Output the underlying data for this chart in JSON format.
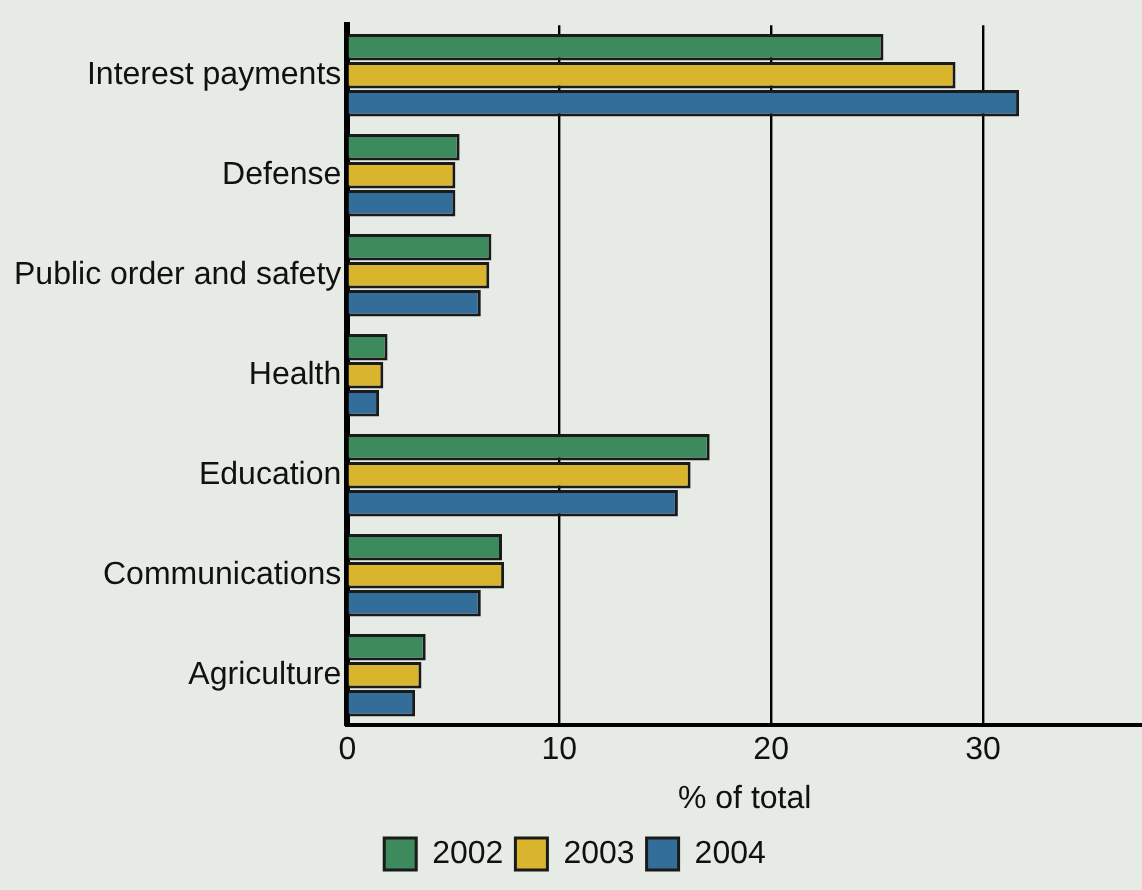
{
  "chart_data": {
    "type": "bar",
    "orientation": "horizontal",
    "xlabel": "% of total",
    "categories": [
      "Interest payments",
      "Defense",
      "Public order and safety",
      "Health",
      "Education",
      "Communications",
      "Agriculture"
    ],
    "series": [
      {
        "name": "2002",
        "color": "#3d8a5c",
        "values": [
          25.3,
          5.3,
          6.8,
          1.9,
          17.1,
          7.3,
          3.7
        ]
      },
      {
        "name": "2003",
        "color": "#d9b52e",
        "values": [
          28.7,
          5.1,
          6.7,
          1.7,
          16.2,
          7.4,
          3.5
        ]
      },
      {
        "name": "2004",
        "color": "#336e9a",
        "values": [
          31.7,
          5.1,
          6.3,
          1.5,
          15.6,
          6.3,
          3.2
        ]
      }
    ],
    "xlim": [
      0,
      37.5
    ],
    "xticks": [
      0,
      10,
      20,
      30
    ],
    "grid": "x",
    "legend": "bottom"
  }
}
